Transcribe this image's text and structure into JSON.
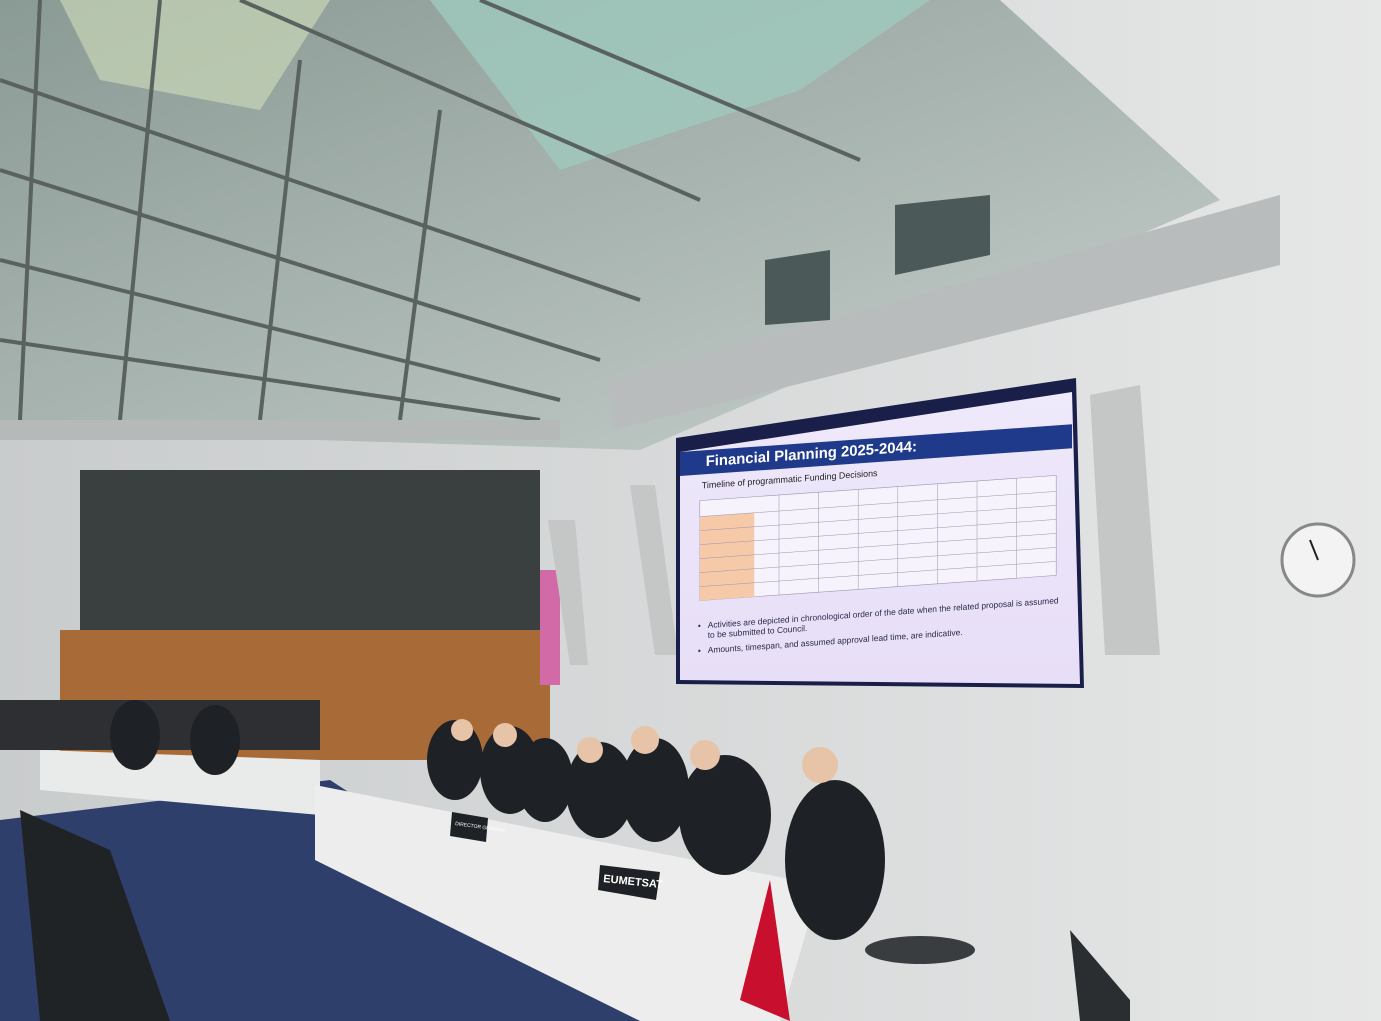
{
  "slide": {
    "title": "Financial Planning 2025-2044:",
    "subtitle": "Timeline of programmatic Funding Decisions",
    "bullets": [
      "Activities are depicted in chronological order of the date when the related proposal is assumed to be submitted to Council.",
      "Amounts, timespan, and assumed approval lead time, are indicative."
    ]
  },
  "nameplates": [
    "EUMETSAT",
    "DIRECTOR GENERAL"
  ]
}
